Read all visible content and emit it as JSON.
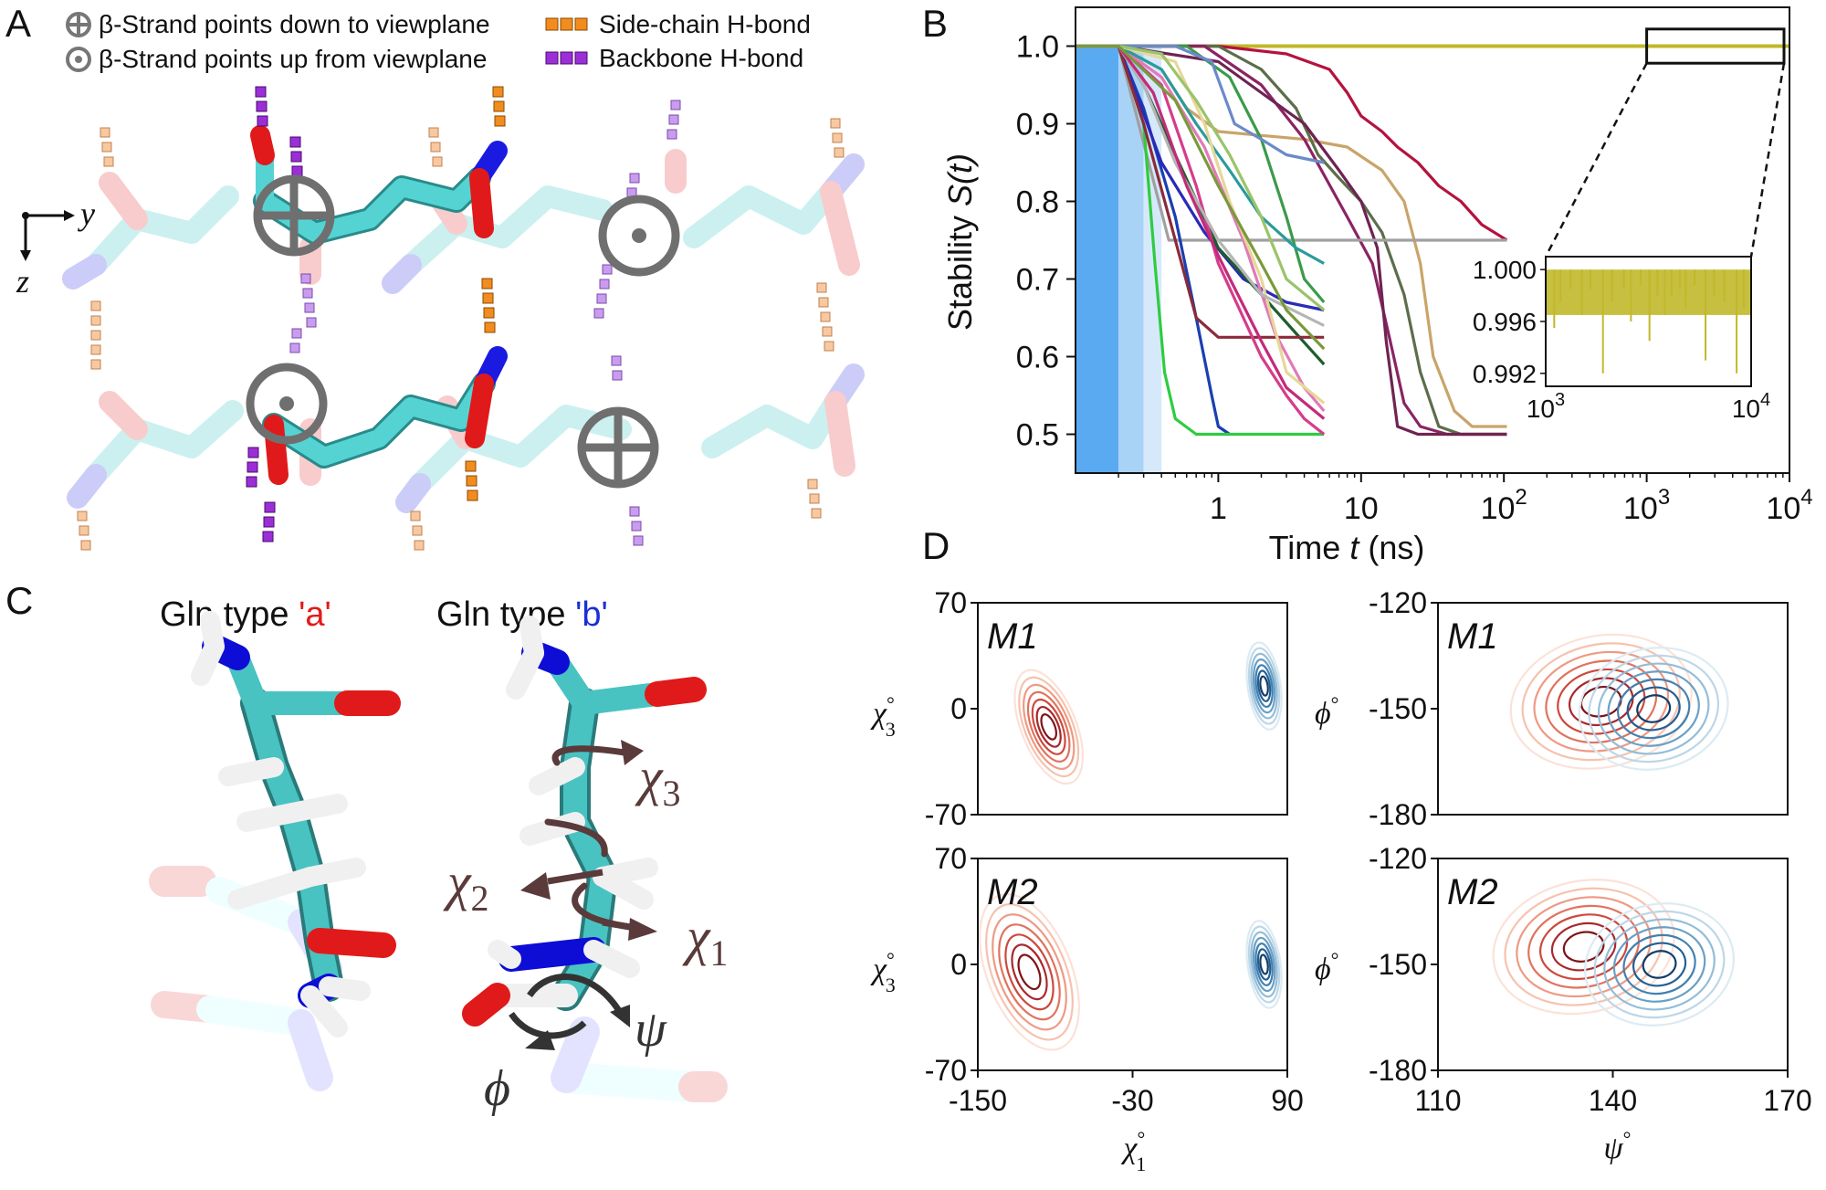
{
  "panel_a": {
    "letter": "A",
    "legend": {
      "down_symbol_icon": "circle-plus-icon",
      "down_text": "β-Strand points down to viewplane",
      "up_symbol_icon": "circle-dot-icon",
      "up_text": "β-Strand points up from viewplane",
      "sidechain_label": "Side-chain H-bond",
      "sidechain_color": "#f28c1e",
      "backbone_label": "Backbone H-bond",
      "backbone_color": "#9b2fd6"
    },
    "axes": {
      "y": "y",
      "z": "z"
    }
  },
  "panel_b": {
    "letter": "B",
    "chart_data": {
      "type": "line",
      "xscale": "log",
      "xlabel_prefix": "Time ",
      "xlabel_var": "t",
      "xlabel_suffix": " (ns)",
      "ylabel_prefix": "Stability ",
      "ylabel_var": "S(t)",
      "xlim": [
        0.1,
        10000
      ],
      "ylim": [
        0.45,
        1.05
      ],
      "x_ticks": [
        {
          "value": 1,
          "label": "1"
        },
        {
          "value": 10,
          "label": "10"
        },
        {
          "value": 100,
          "label": "10",
          "sup": "2"
        },
        {
          "value": 1000,
          "label": "10",
          "sup": "3"
        },
        {
          "value": 10000,
          "label": "10",
          "sup": "4"
        }
      ],
      "y_ticks": [
        "0.5",
        "0.6",
        "0.7",
        "0.8",
        "0.9",
        "1.0"
      ],
      "y_tick_values": [
        0.5,
        0.6,
        0.7,
        0.8,
        0.9,
        1.0
      ],
      "series": [
        {
          "color": "#c1b82a",
          "x": [
            0.1,
            10000
          ],
          "y": [
            1.0,
            1.0
          ]
        },
        {
          "color": "#b5123f",
          "x": [
            0.1,
            0.2,
            1,
            3,
            6,
            8,
            10,
            14,
            18,
            25,
            35,
            50,
            70,
            105
          ],
          "y": [
            1.0,
            1.0,
            1.0,
            0.99,
            0.97,
            0.94,
            0.91,
            0.89,
            0.87,
            0.85,
            0.82,
            0.8,
            0.77,
            0.75
          ]
        },
        {
          "color": "#c9a46a",
          "x": [
            0.1,
            0.2,
            0.4,
            0.6,
            1,
            2,
            4,
            8,
            14,
            20,
            26,
            32,
            45,
            60,
            105
          ],
          "y": [
            1.0,
            1.0,
            0.97,
            0.92,
            0.89,
            0.885,
            0.88,
            0.87,
            0.84,
            0.8,
            0.72,
            0.6,
            0.53,
            0.51,
            0.51
          ]
        },
        {
          "color": "#5c6e4a",
          "x": [
            0.1,
            0.2,
            1,
            2,
            3.5,
            5,
            7,
            10,
            14,
            20,
            26,
            35,
            50,
            105
          ],
          "y": [
            1.0,
            1.0,
            1.0,
            0.97,
            0.92,
            0.86,
            0.83,
            0.8,
            0.76,
            0.68,
            0.58,
            0.51,
            0.5,
            0.5
          ]
        },
        {
          "color": "#8a2463",
          "x": [
            0.1,
            0.2,
            0.8,
            2,
            4,
            8,
            12,
            16,
            20,
            26,
            40,
            105
          ],
          "y": [
            1.0,
            1.0,
            1.0,
            0.95,
            0.88,
            0.78,
            0.72,
            0.62,
            0.54,
            0.51,
            0.5,
            0.5
          ]
        },
        {
          "color": "#6e2452",
          "x": [
            0.1,
            0.2,
            1,
            2,
            4,
            7,
            10,
            13,
            15,
            18,
            25,
            105
          ],
          "y": [
            1.0,
            1.0,
            0.98,
            0.94,
            0.9,
            0.84,
            0.8,
            0.74,
            0.62,
            0.51,
            0.5,
            0.5
          ]
        },
        {
          "color": "#a0a0a0",
          "x": [
            0.1,
            0.2,
            0.45,
            1,
            10,
            105
          ],
          "y": [
            1.0,
            1.0,
            0.75,
            0.75,
            0.75,
            0.75
          ]
        },
        {
          "color": "#1a3fb0",
          "x": [
            0.1,
            0.2,
            0.3,
            0.5,
            0.7,
            0.9,
            1.0,
            1.2
          ],
          "y": [
            1.0,
            1.0,
            0.92,
            0.78,
            0.65,
            0.55,
            0.51,
            0.5
          ]
        },
        {
          "color": "#2ecc40",
          "x": [
            0.1,
            0.2,
            0.3,
            0.36,
            0.42,
            0.5,
            0.7,
            1,
            5.5
          ],
          "y": [
            1.0,
            1.0,
            0.9,
            0.72,
            0.58,
            0.52,
            0.5,
            0.5,
            0.5
          ]
        },
        {
          "color": "#2a2ab8",
          "x": [
            0.1,
            0.2,
            0.4,
            0.8,
            1.5,
            3,
            5.5
          ],
          "y": [
            1.0,
            1.0,
            0.85,
            0.76,
            0.7,
            0.67,
            0.66
          ]
        },
        {
          "color": "#1f5c2e",
          "x": [
            0.1,
            0.2,
            0.3,
            0.5,
            1,
            2,
            3.5,
            5.5
          ],
          "y": [
            1.0,
            1.0,
            0.95,
            0.86,
            0.74,
            0.68,
            0.63,
            0.59
          ]
        },
        {
          "color": "#8b2a3a",
          "x": [
            0.1,
            0.2,
            0.3,
            0.5,
            0.7,
            1,
            5.5
          ],
          "y": [
            1.0,
            1.0,
            0.9,
            0.75,
            0.65,
            0.625,
            0.625
          ]
        },
        {
          "color": "#d63c8c",
          "x": [
            0.1,
            0.2,
            0.4,
            0.7,
            1,
            2,
            3,
            4,
            5.5
          ],
          "y": [
            1.0,
            1.0,
            0.95,
            0.82,
            0.72,
            0.6,
            0.55,
            0.52,
            0.5
          ]
        },
        {
          "color": "#e07ab8",
          "x": [
            0.1,
            0.2,
            0.4,
            0.8,
            1.5,
            2.5,
            4,
            5.5
          ],
          "y": [
            1.0,
            1.0,
            0.96,
            0.87,
            0.75,
            0.63,
            0.56,
            0.53
          ]
        },
        {
          "color": "#3a9b4a",
          "x": [
            0.1,
            0.2,
            0.6,
            1.2,
            2,
            3,
            4,
            5.5
          ],
          "y": [
            1.0,
            1.0,
            1.0,
            0.96,
            0.88,
            0.78,
            0.7,
            0.67
          ]
        },
        {
          "color": "#6a8ac9",
          "x": [
            0.1,
            0.2,
            0.5,
            0.9,
            1.3,
            2,
            3,
            5.5
          ],
          "y": [
            1.0,
            1.0,
            1.0,
            0.98,
            0.9,
            0.88,
            0.86,
            0.85
          ]
        },
        {
          "color": "#2a9b9b",
          "x": [
            0.1,
            0.2,
            0.4,
            0.7,
            1.2,
            2,
            3.5,
            5.5
          ],
          "y": [
            1.0,
            1.0,
            0.97,
            0.9,
            0.84,
            0.78,
            0.74,
            0.72
          ]
        },
        {
          "color": "#e6d79a",
          "x": [
            0.1,
            0.2,
            0.5,
            0.8,
            1.2,
            2,
            3,
            5.5
          ],
          "y": [
            1.0,
            1.0,
            0.98,
            0.9,
            0.8,
            0.7,
            0.58,
            0.54
          ]
        },
        {
          "color": "#9ac46a",
          "x": [
            0.1,
            0.2,
            0.4,
            0.7,
            1.2,
            2,
            3,
            5.5
          ],
          "y": [
            1.0,
            1.0,
            0.99,
            0.93,
            0.86,
            0.78,
            0.7,
            0.66
          ]
        },
        {
          "color": "#b5b5b5",
          "x": [
            0.1,
            0.2,
            0.3,
            0.5,
            1,
            2,
            5.5
          ],
          "y": [
            1.0,
            1.0,
            0.95,
            0.85,
            0.75,
            0.68,
            0.64
          ]
        },
        {
          "color": "#c42a7a",
          "x": [
            0.1,
            0.2,
            0.35,
            0.6,
            1,
            2,
            3,
            5.5
          ],
          "y": [
            1.0,
            1.0,
            0.94,
            0.82,
            0.73,
            0.62,
            0.56,
            0.52
          ]
        },
        {
          "color": "#7a9a3a",
          "x": [
            0.1,
            0.2,
            0.5,
            1,
            2,
            3,
            5.5
          ],
          "y": [
            1.0,
            1.0,
            0.93,
            0.82,
            0.72,
            0.66,
            0.61
          ]
        }
      ],
      "inset": {
        "xlim": [
          1000,
          10000
        ],
        "ylim": [
          0.991,
          1.001
        ],
        "y_ticks": [
          "1.000",
          "0.996",
          "0.992"
        ],
        "y_tick_values": [
          1.0,
          0.996,
          0.992
        ],
        "x_ticks": [
          {
            "value": 1000,
            "label": "10",
            "sup": "3"
          },
          {
            "value": 10000,
            "label": "10",
            "sup": "4"
          }
        ],
        "color": "#c1b82a",
        "dips": [
          {
            "x": 1100,
            "y": 0.9955
          },
          {
            "x": 1180,
            "y": 0.9975
          },
          {
            "x": 1320,
            "y": 0.9985
          },
          {
            "x": 1500,
            "y": 0.9965
          },
          {
            "x": 1650,
            "y": 0.9985
          },
          {
            "x": 1900,
            "y": 0.992
          },
          {
            "x": 2100,
            "y": 0.9975
          },
          {
            "x": 2400,
            "y": 0.9985
          },
          {
            "x": 2600,
            "y": 0.996
          },
          {
            "x": 2900,
            "y": 0.9988
          },
          {
            "x": 3200,
            "y": 0.9945
          },
          {
            "x": 3500,
            "y": 0.998
          },
          {
            "x": 3800,
            "y": 0.9965
          },
          {
            "x": 4100,
            "y": 0.998
          },
          {
            "x": 4500,
            "y": 0.9985
          },
          {
            "x": 4800,
            "y": 0.997
          },
          {
            "x": 5300,
            "y": 0.9988
          },
          {
            "x": 6000,
            "y": 0.993
          },
          {
            "x": 6600,
            "y": 0.998
          },
          {
            "x": 7400,
            "y": 0.9975
          },
          {
            "x": 8500,
            "y": 0.992
          },
          {
            "x": 9200,
            "y": 0.997
          }
        ]
      }
    }
  },
  "panel_c": {
    "letter": "C",
    "type_a_prefix": "Gln type ",
    "type_a_label": "'a'",
    "type_a_color": "#e21b1b",
    "type_b_prefix": "Gln type ",
    "type_b_label": "'b'",
    "type_b_color": "#1a2fd6",
    "angle_labels": {
      "chi3": "χ",
      "chi3_sub": "3",
      "chi2": "χ",
      "chi2_sub": "2",
      "chi1": "χ",
      "chi1_sub": "1",
      "phi": "ϕ",
      "psi": "ψ"
    }
  },
  "panel_d": {
    "letter": "D",
    "chart_data": [
      {
        "type": "contour",
        "model": "M1",
        "xlim": [
          -150,
          90
        ],
        "ylim": [
          -70,
          70
        ],
        "x_ticks": [],
        "y_ticks": [
          "70",
          "0",
          "-70"
        ],
        "ylabel": "χ",
        "ylabel_sub": "3",
        "ylabel_sup": "°",
        "clusters": [
          {
            "color": "red",
            "x": -95,
            "y": -12
          },
          {
            "color": "blue",
            "x": 72,
            "y": 15
          }
        ]
      },
      {
        "type": "contour",
        "model": "M1",
        "xlim": [
          110,
          170
        ],
        "ylim": [
          -180,
          -120
        ],
        "x_ticks": [],
        "y_ticks": [
          "-120",
          "-150",
          "-180"
        ],
        "ylabel": "ϕ",
        "ylabel_sup": "°",
        "clusters": [
          {
            "color": "red",
            "x": 138,
            "y": -148
          },
          {
            "color": "blue",
            "x": 147,
            "y": -150
          }
        ]
      },
      {
        "type": "contour",
        "model": "M2",
        "xlim": [
          -150,
          90
        ],
        "ylim": [
          -70,
          70
        ],
        "x_ticks": [
          "-150",
          "-30",
          "90"
        ],
        "y_ticks": [
          "70",
          "0",
          "-70"
        ],
        "xlabel": "χ",
        "xlabel_sub": "1",
        "xlabel_sup": "°",
        "ylabel": "χ",
        "ylabel_sub": "3",
        "ylabel_sup": "°",
        "clusters": [
          {
            "color": "red",
            "x": -110,
            "y": -5
          },
          {
            "color": "blue",
            "x": 72,
            "y": 0
          }
        ]
      },
      {
        "type": "contour",
        "model": "M2",
        "xlim": [
          110,
          170
        ],
        "ylim": [
          -180,
          -120
        ],
        "x_ticks": [
          "110",
          "140",
          "170"
        ],
        "y_ticks": [
          "-120",
          "-150",
          "-180"
        ],
        "xlabel": "ψ",
        "xlabel_sup": "°",
        "ylabel": "ϕ",
        "ylabel_sup": "°",
        "clusters": [
          {
            "color": "red",
            "x": 135,
            "y": -145
          },
          {
            "color": "blue",
            "x": 148,
            "y": -150
          }
        ]
      }
    ]
  }
}
